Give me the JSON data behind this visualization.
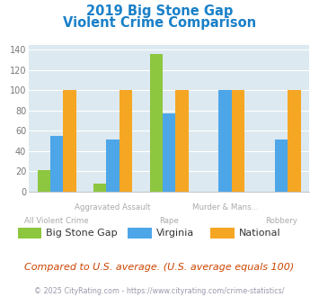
{
  "title_line1": "2019 Big Stone Gap",
  "title_line2": "Violent Crime Comparison",
  "categories": [
    "All Violent Crime",
    "Aggravated Assault",
    "Rape",
    "Murder & Mans...",
    "Robbery"
  ],
  "x_top_labels": [
    "",
    "Aggravated Assault",
    "",
    "Murder & Mans...",
    ""
  ],
  "x_bot_labels": [
    "All Violent Crime",
    "",
    "Rape",
    "",
    "Robbery"
  ],
  "series": {
    "Big Stone Gap": [
      21,
      8,
      136,
      0,
      0
    ],
    "Virginia": [
      55,
      51,
      77,
      100,
      51
    ],
    "National": [
      100,
      100,
      100,
      100,
      100
    ]
  },
  "series_order": [
    "Big Stone Gap",
    "Virginia",
    "National"
  ],
  "colors": {
    "Big Stone Gap": "#8dc63f",
    "Virginia": "#4da6e8",
    "National": "#f5a623"
  },
  "ylim": [
    0,
    145
  ],
  "yticks": [
    0,
    20,
    40,
    60,
    80,
    100,
    120,
    140
  ],
  "plot_bg_color": "#dce9f0",
  "title_color": "#1a80c8",
  "axis_label_color": "#aaaaaa",
  "grid_color": "#ffffff",
  "footer_text": "Compared to U.S. average. (U.S. average equals 100)",
  "footer_color": "#cc4400",
  "copyright_text": "© 2025 CityRating.com - https://www.cityrating.com/crime-statistics/",
  "copyright_color": "#9999aa"
}
